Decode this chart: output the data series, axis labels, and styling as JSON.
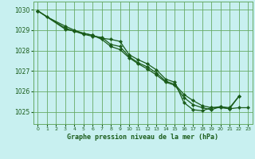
{
  "title": "Graphe pression niveau de la mer (hPa)",
  "background_color": "#c8f0f0",
  "grid_color": "#66aa66",
  "line_color": "#1a5c1a",
  "xlim": [
    -0.5,
    23.5
  ],
  "ylim": [
    1024.4,
    1030.4
  ],
  "yticks": [
    1025,
    1026,
    1027,
    1028,
    1029,
    1030
  ],
  "xticks": [
    0,
    1,
    2,
    3,
    4,
    5,
    6,
    7,
    8,
    9,
    10,
    11,
    12,
    13,
    14,
    15,
    16,
    17,
    18,
    19,
    20,
    21,
    22,
    23
  ],
  "series1_x": [
    0,
    1,
    3,
    4,
    5,
    6,
    7,
    8,
    9,
    10,
    11,
    12,
    13,
    14,
    15,
    16,
    17,
    18,
    19,
    20,
    21,
    22,
    23
  ],
  "series1_y": [
    1029.95,
    1029.65,
    1029.2,
    1029.0,
    1028.85,
    1028.75,
    1028.6,
    1028.55,
    1028.45,
    1027.8,
    1027.55,
    1027.35,
    1027.05,
    1026.6,
    1026.45,
    1025.45,
    1025.1,
    1025.05,
    1025.2,
    1025.2,
    1025.15,
    1025.2,
    1025.2
  ],
  "series2_x": [
    0,
    3,
    4,
    5,
    6,
    7,
    8,
    9,
    10,
    11,
    12,
    13,
    14,
    15,
    16,
    17,
    18,
    19,
    20,
    21,
    22
  ],
  "series2_y": [
    1029.95,
    1029.1,
    1028.95,
    1028.8,
    1028.7,
    1028.65,
    1028.3,
    1028.2,
    1027.7,
    1027.4,
    1027.2,
    1026.9,
    1026.5,
    1026.35,
    1025.85,
    1025.55,
    1025.3,
    1025.2,
    1025.25,
    1025.2,
    1025.75
  ],
  "series3_x": [
    0,
    3,
    4,
    6,
    7,
    8,
    9,
    10,
    11,
    12,
    13,
    14,
    15,
    16,
    17,
    18,
    19,
    20,
    21,
    22
  ],
  "series3_y": [
    1029.95,
    1029.05,
    1028.95,
    1028.75,
    1028.55,
    1028.2,
    1028.05,
    1027.65,
    1027.35,
    1027.1,
    1026.8,
    1026.45,
    1026.3,
    1025.7,
    1025.35,
    1025.2,
    1025.1,
    1025.25,
    1025.15,
    1025.75
  ]
}
